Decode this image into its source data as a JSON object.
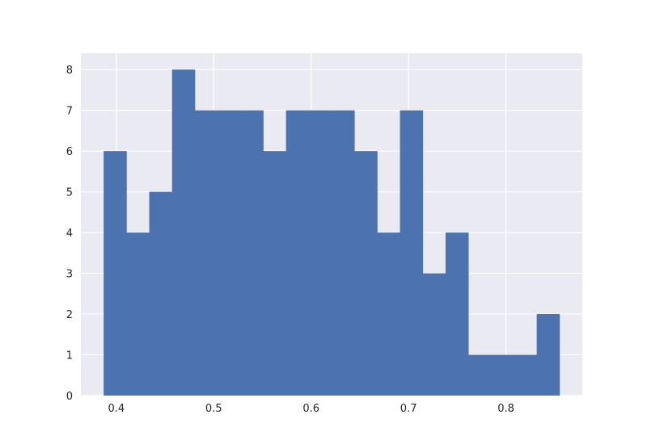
{
  "chart_data": {
    "type": "bar",
    "style": "histogram",
    "bins": [
      {
        "x0": 0.387,
        "x1": 0.4104,
        "count": 6
      },
      {
        "x0": 0.4104,
        "x1": 0.4338,
        "count": 4
      },
      {
        "x0": 0.4338,
        "x1": 0.4572,
        "count": 5
      },
      {
        "x0": 0.4572,
        "x1": 0.4806,
        "count": 8
      },
      {
        "x0": 0.4806,
        "x1": 0.504,
        "count": 7
      },
      {
        "x0": 0.504,
        "x1": 0.5274,
        "count": 7
      },
      {
        "x0": 0.5274,
        "x1": 0.5508,
        "count": 7
      },
      {
        "x0": 0.5508,
        "x1": 0.5742,
        "count": 6
      },
      {
        "x0": 0.5742,
        "x1": 0.5976,
        "count": 7
      },
      {
        "x0": 0.5976,
        "x1": 0.621,
        "count": 7
      },
      {
        "x0": 0.621,
        "x1": 0.6444,
        "count": 7
      },
      {
        "x0": 0.6444,
        "x1": 0.6678,
        "count": 6
      },
      {
        "x0": 0.6678,
        "x1": 0.6912,
        "count": 4
      },
      {
        "x0": 0.6912,
        "x1": 0.7146,
        "count": 7
      },
      {
        "x0": 0.7146,
        "x1": 0.738,
        "count": 3
      },
      {
        "x0": 0.738,
        "x1": 0.7614,
        "count": 4
      },
      {
        "x0": 0.7614,
        "x1": 0.7848,
        "count": 1
      },
      {
        "x0": 0.7848,
        "x1": 0.8082,
        "count": 1
      },
      {
        "x0": 0.8082,
        "x1": 0.8316,
        "count": 1
      },
      {
        "x0": 0.8316,
        "x1": 0.855,
        "count": 2
      }
    ],
    "title": "",
    "xlabel": "",
    "ylabel": "",
    "xlim": [
      0.3636,
      0.8784
    ],
    "ylim": [
      0,
      8.4
    ],
    "xticks": [
      "0.4",
      "0.5",
      "0.6",
      "0.7",
      "0.8"
    ],
    "yticks": [
      "0",
      "1",
      "2",
      "3",
      "4",
      "5",
      "6",
      "7",
      "8"
    ],
    "grid": true,
    "bar_color": "#4c72b0",
    "background_color": "#eaeaf2",
    "grid_color": "#ffffff"
  }
}
